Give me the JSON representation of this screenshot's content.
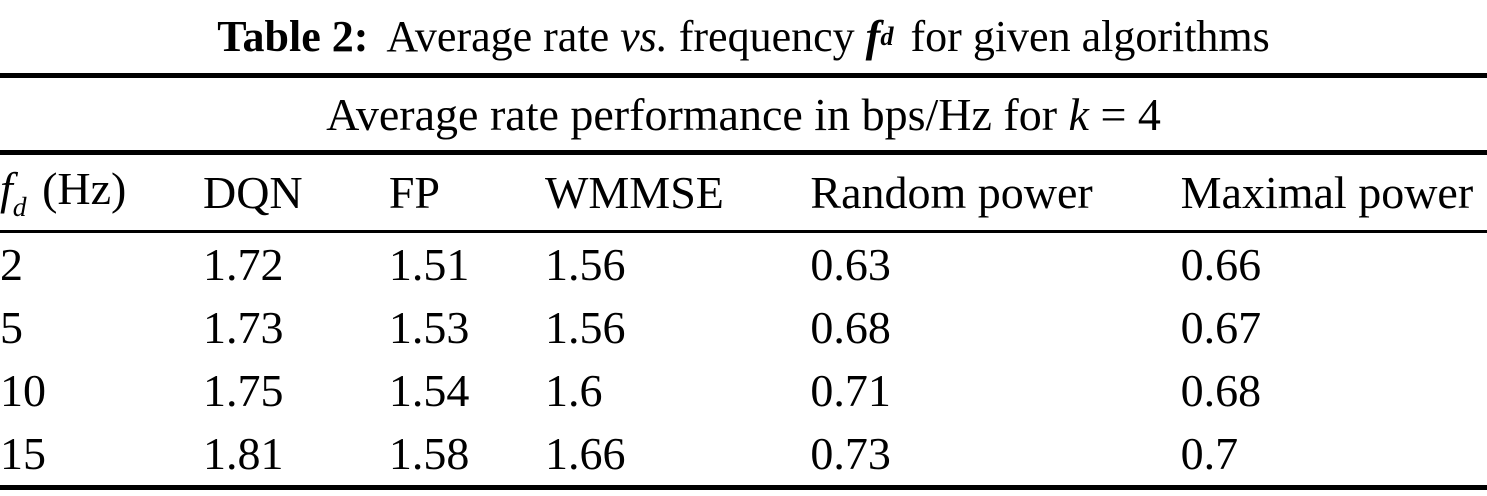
{
  "caption": {
    "label": "Table 2:",
    "seg1": "Average rate ",
    "vs": "vs.",
    "seg2": " frequency ",
    "f": "f",
    "f_sub": "d",
    "seg3": " for given algorithms"
  },
  "subtitle": {
    "seg1": "Average rate performance in bps/Hz for ",
    "k": "k",
    "seg2": " = 4"
  },
  "table": {
    "header": {
      "fd_symbol": "f",
      "fd_sub": "d",
      "fd_unit": "(Hz)",
      "cols": [
        "DQN",
        "FP",
        "WMMSE",
        "Random power",
        "Maximal power"
      ]
    },
    "rows": [
      {
        "fd": "2",
        "values": [
          "1.72",
          "1.51",
          "1.56",
          "0.63",
          "0.66"
        ]
      },
      {
        "fd": "5",
        "values": [
          "1.73",
          "1.53",
          "1.56",
          "0.68",
          "0.67"
        ]
      },
      {
        "fd": "10",
        "values": [
          "1.75",
          "1.54",
          "1.6",
          "0.71",
          "0.68"
        ]
      },
      {
        "fd": "15",
        "values": [
          "1.81",
          "1.58",
          "1.66",
          "0.73",
          "0.7"
        ]
      }
    ]
  },
  "chart_data": {
    "type": "table",
    "title": "Table 2: Average rate vs. frequency f_d for given algorithms",
    "subtitle": "Average rate performance in bps/Hz for k = 4",
    "columns": [
      "f_d (Hz)",
      "DQN",
      "FP",
      "WMMSE",
      "Random power",
      "Maximal power"
    ],
    "rows": [
      [
        2,
        1.72,
        1.51,
        1.56,
        0.63,
        0.66
      ],
      [
        5,
        1.73,
        1.53,
        1.56,
        0.68,
        0.67
      ],
      [
        10,
        1.75,
        1.54,
        1.6,
        0.71,
        0.68
      ],
      [
        15,
        1.81,
        1.58,
        1.66,
        0.73,
        0.7
      ]
    ]
  }
}
